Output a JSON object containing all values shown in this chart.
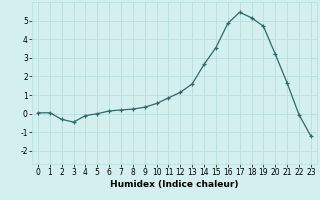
{
  "x": [
    0,
    1,
    2,
    3,
    4,
    5,
    6,
    7,
    8,
    9,
    10,
    11,
    12,
    13,
    14,
    15,
    16,
    17,
    18,
    19,
    20,
    21,
    22,
    23
  ],
  "y": [
    0.05,
    0.05,
    -0.3,
    -0.45,
    -0.1,
    0.0,
    0.15,
    0.2,
    0.25,
    0.35,
    0.55,
    0.85,
    1.15,
    1.6,
    2.65,
    3.55,
    4.85,
    5.45,
    5.15,
    4.7,
    3.2,
    1.65,
    -0.05,
    -1.2
  ],
  "line_color": "#2d6b6b",
  "marker": "+",
  "marker_size": 3,
  "bg_color": "#d4efef",
  "grid_color": "#b8dede",
  "xlabel": "Humidex (Indice chaleur)",
  "xlim": [
    -0.5,
    23.5
  ],
  "ylim": [
    -2.7,
    6.0
  ],
  "yticks": [
    -2,
    -1,
    0,
    1,
    2,
    3,
    4,
    5
  ],
  "xticks": [
    0,
    1,
    2,
    3,
    4,
    5,
    6,
    7,
    8,
    9,
    10,
    11,
    12,
    13,
    14,
    15,
    16,
    17,
    18,
    19,
    20,
    21,
    22,
    23
  ],
  "xlabel_fontsize": 6.5,
  "tick_fontsize": 5.5
}
